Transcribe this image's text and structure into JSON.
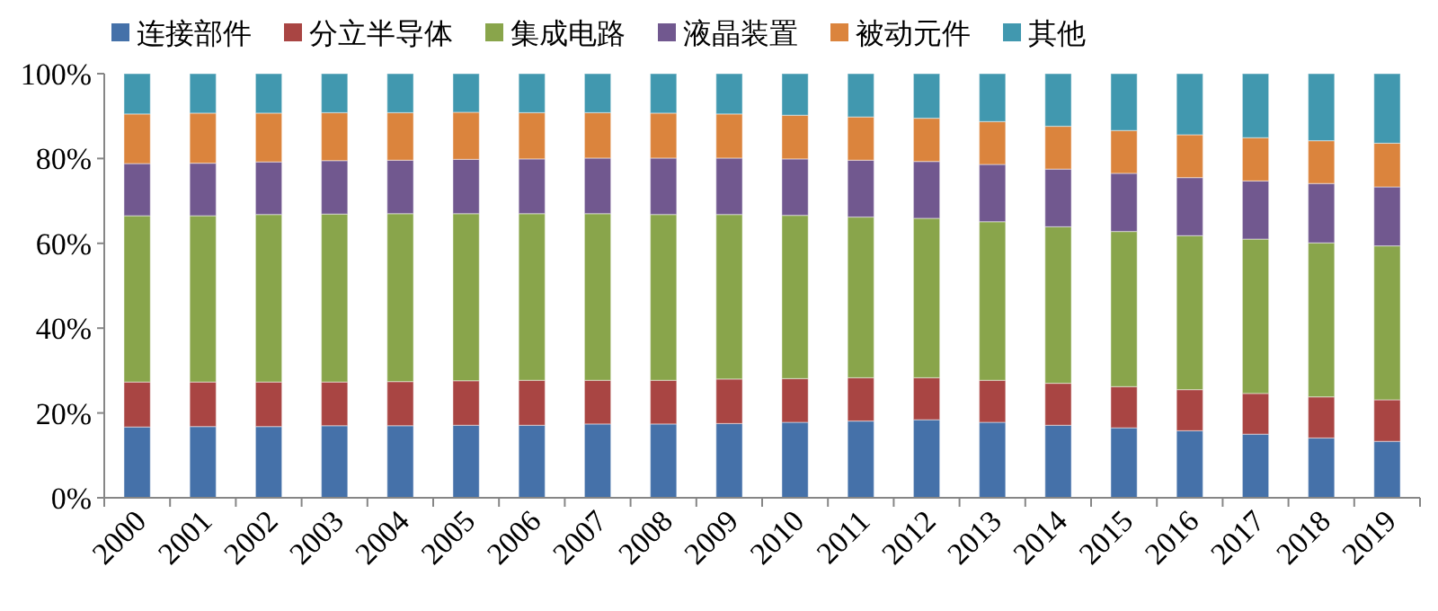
{
  "chart_data": {
    "type": "bar",
    "stacked": true,
    "legend": "top",
    "grid": false,
    "categories": [
      "2000",
      "2001",
      "2002",
      "2003",
      "2004",
      "2005",
      "2006",
      "2007",
      "2008",
      "2009",
      "2010",
      "2011",
      "2012",
      "2013",
      "2014",
      "2015",
      "2016",
      "2017",
      "2018",
      "2019"
    ],
    "ylim": [
      0,
      100
    ],
    "yticks": [
      {
        "value": 0,
        "label": "0%"
      },
      {
        "value": 20,
        "label": "20%"
      },
      {
        "value": 40,
        "label": "40%"
      },
      {
        "value": 60,
        "label": "60%"
      },
      {
        "value": 80,
        "label": "80%"
      },
      {
        "value": 100,
        "label": "100%"
      }
    ],
    "series": [
      {
        "name": "连接部件",
        "color": "#4571a9",
        "values": [
          16.7,
          16.8,
          16.8,
          17.0,
          17.0,
          17.1,
          17.1,
          17.4,
          17.4,
          17.5,
          17.8,
          18.1,
          18.4,
          17.8,
          17.1,
          16.5,
          15.8,
          15.0,
          14.1,
          13.3
        ]
      },
      {
        "name": "分立半导体",
        "color": "#a94543",
        "values": [
          10.6,
          10.5,
          10.5,
          10.3,
          10.4,
          10.5,
          10.6,
          10.3,
          10.3,
          10.5,
          10.3,
          10.2,
          9.9,
          9.9,
          9.9,
          9.7,
          9.7,
          9.6,
          9.7,
          9.8
        ]
      },
      {
        "name": "集成电路",
        "color": "#89a54b",
        "values": [
          39.2,
          39.2,
          39.5,
          39.6,
          39.6,
          39.4,
          39.3,
          39.3,
          39.1,
          38.8,
          38.5,
          37.9,
          37.6,
          37.4,
          36.9,
          36.6,
          36.3,
          36.4,
          36.3,
          36.3
        ]
      },
      {
        "name": "液晶装置",
        "color": "#71588f",
        "values": [
          12.3,
          12.4,
          12.4,
          12.6,
          12.6,
          12.8,
          12.9,
          13.1,
          13.3,
          13.3,
          13.3,
          13.4,
          13.4,
          13.5,
          13.6,
          13.7,
          13.7,
          13.7,
          14.0,
          13.9
        ]
      },
      {
        "name": "被动元件",
        "color": "#db843d",
        "values": [
          11.7,
          11.8,
          11.5,
          11.3,
          11.2,
          11.1,
          10.9,
          10.7,
          10.6,
          10.4,
          10.3,
          10.2,
          10.2,
          10.1,
          10.1,
          10.1,
          10.1,
          10.2,
          10.1,
          10.3
        ]
      },
      {
        "name": "其他",
        "color": "#4198af",
        "values": [
          9.5,
          9.3,
          9.3,
          9.2,
          9.2,
          9.1,
          9.2,
          9.2,
          9.3,
          9.5,
          9.8,
          10.2,
          10.5,
          11.3,
          12.4,
          13.4,
          14.4,
          15.1,
          15.8,
          16.4
        ]
      }
    ]
  }
}
